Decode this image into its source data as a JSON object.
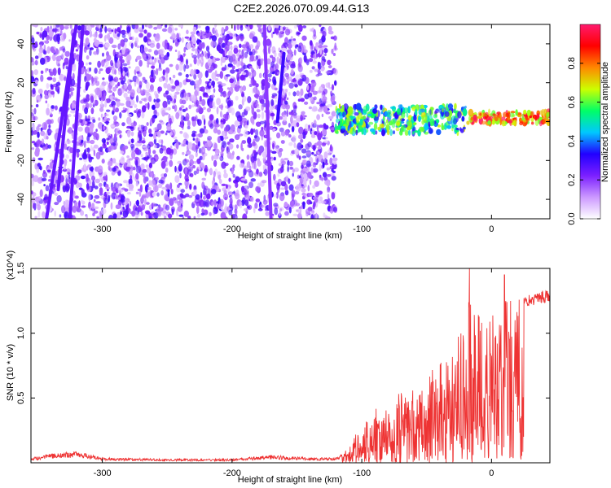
{
  "title": "C2E2.2026.070.09.44.G13",
  "chart_data": [
    {
      "type": "heatmap",
      "title": "C2E2.2026.070.09.44.G13",
      "xlabel": "Height of straight line (km)",
      "ylabel": "Frequency (Hz)",
      "xlim": [
        -355,
        45
      ],
      "ylim": [
        -50,
        50
      ],
      "xticks": [
        -300,
        -200,
        -100,
        0
      ],
      "yticks": [
        -40,
        -20,
        0,
        20,
        40
      ],
      "colorbar": {
        "label": "Normalized spectral amplitude",
        "range": [
          0,
          1
        ],
        "ticks": [
          "0.0",
          "0.2",
          "0.4",
          "0.6",
          "0.8"
        ],
        "colormap": [
          "#ffffff",
          "#cc99ff",
          "#7b1fff",
          "#2200ff",
          "#00c8ff",
          "#00ff66",
          "#ccff00",
          "#ff8800",
          "#ff0000",
          "#ff1a6e"
        ]
      },
      "regions": [
        {
          "x_range": [
            -355,
            -120
          ],
          "y_range": [
            -50,
            50
          ],
          "amplitude": [
            0.05,
            0.3
          ],
          "description": "broadband"
        },
        {
          "x_range": [
            -120,
            -20
          ],
          "y_range": [
            -6,
            8
          ],
          "amplitude": [
            0.3,
            0.7
          ]
        },
        {
          "x_range": [
            -20,
            45
          ],
          "y_range": [
            -1,
            5
          ],
          "amplitude": [
            0.6,
            1.0
          ]
        }
      ],
      "streaks": [
        {
          "x": [
            -343,
            -320
          ],
          "y": [
            -50,
            50
          ],
          "amplitude": 0.25
        },
        {
          "x": [
            -334,
            -322
          ],
          "y": [
            -35,
            45
          ],
          "amplitude": 0.25
        },
        {
          "x": [
            -325,
            -315
          ],
          "y": [
            -50,
            50
          ],
          "amplitude": 0.25
        },
        {
          "x": [
            -170,
            -175
          ],
          "y": [
            -50,
            50
          ],
          "amplitude": 0.2
        },
        {
          "x": [
            -165,
            -160
          ],
          "y": [
            0,
            35
          ],
          "amplitude": 0.3
        }
      ]
    },
    {
      "type": "line",
      "xlabel": "Height of straight line (km)",
      "ylabel": "SNR (10 * v/v)",
      "y_multiplier": "(x10^4)",
      "xlim": [
        -355,
        45
      ],
      "ylim": [
        0,
        15000
      ],
      "xticks": [
        -300,
        -200,
        -100,
        0
      ],
      "yticks": [
        "0.5",
        "1.0",
        "1.5"
      ],
      "series": [
        {
          "color": "#ee3333",
          "envelope": {
            "x": [
              -355,
              -340,
              -320,
              -300,
              -250,
              -200,
              -170,
              -140,
              -120,
              -110,
              -100,
              -80,
              -60,
              -40,
              -30,
              -20,
              -15,
              -10,
              -5,
              0,
              5,
              10,
              20,
              30,
              40,
              45
            ],
            "y": [
              400,
              700,
              900,
              400,
              300,
              300,
              600,
              400,
              400,
              1000,
              3000,
              4500,
              5500,
              7000,
              8000,
              10000,
              14000,
              11000,
              10000,
              10500,
              11500,
              12000,
              12500,
              13000,
              13300,
              13200
            ]
          },
          "peaks": [
            {
              "x": -17,
              "y": 15000
            },
            {
              "x": 10,
              "y": 14500
            }
          ]
        }
      ]
    }
  ]
}
